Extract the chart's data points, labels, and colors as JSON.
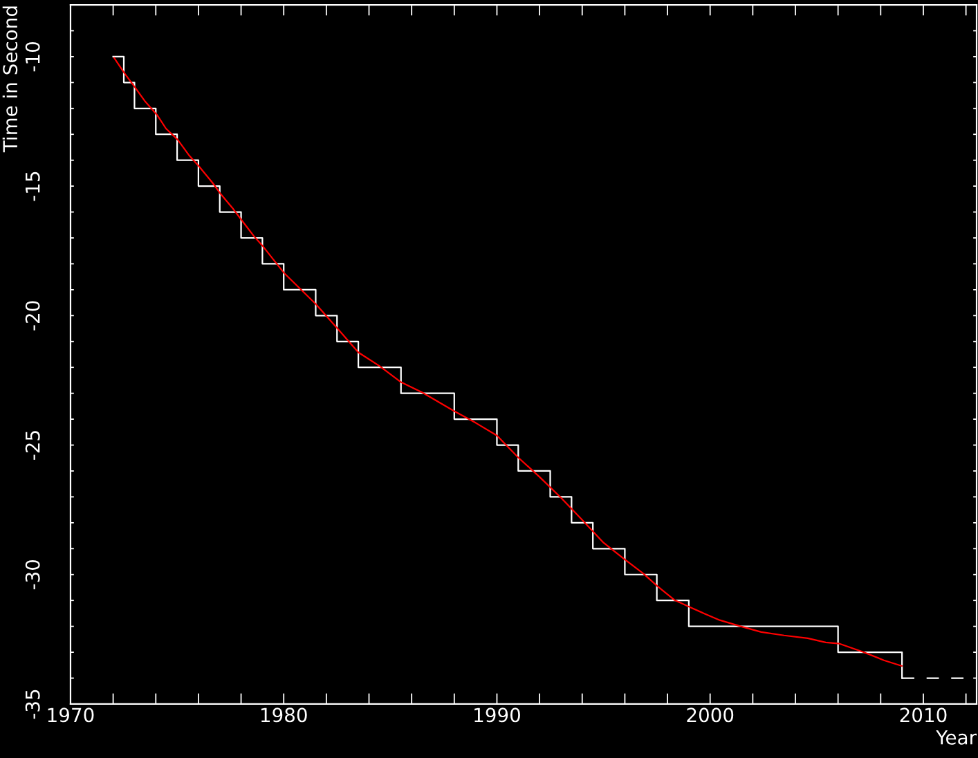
{
  "chart_data": {
    "type": "step",
    "xlabel": "Year",
    "ylabel": "Time in Second",
    "xlim": [
      1970,
      2012.5
    ],
    "ylim": [
      -35,
      -8
    ],
    "xticks": [
      1970,
      {
        "value": 1972,
        "label": null
      },
      {
        "value": 1974,
        "label": null
      },
      {
        "value": 1976,
        "label": null
      },
      {
        "value": 1978,
        "label": null
      },
      1980,
      {
        "value": 1982,
        "label": null
      },
      {
        "value": 1984,
        "label": null
      },
      {
        "value": 1986,
        "label": null
      },
      {
        "value": 1988,
        "label": null
      },
      1990,
      {
        "value": 1992,
        "label": null
      },
      {
        "value": 1994,
        "label": null
      },
      {
        "value": 1996,
        "label": null
      },
      {
        "value": 1998,
        "label": null
      },
      2000,
      {
        "value": 2002,
        "label": null
      },
      {
        "value": 2004,
        "label": null
      },
      {
        "value": 2006,
        "label": null
      },
      {
        "value": 2008,
        "label": null
      },
      2010,
      {
        "value": 2012,
        "label": null
      }
    ],
    "yticks": [
      -35,
      {
        "value": -34,
        "label": null
      },
      {
        "value": -33,
        "label": null
      },
      {
        "value": -32,
        "label": null
      },
      {
        "value": -31,
        "label": null
      },
      -30,
      {
        "value": -29,
        "label": null
      },
      {
        "value": -28,
        "label": null
      },
      {
        "value": -27,
        "label": null
      },
      {
        "value": -26,
        "label": null
      },
      -25,
      {
        "value": -24,
        "label": null
      },
      {
        "value": -23,
        "label": null
      },
      {
        "value": -22,
        "label": null
      },
      {
        "value": -21,
        "label": null
      },
      -20,
      {
        "value": -19,
        "label": null
      },
      {
        "value": -18,
        "label": null
      },
      {
        "value": -17,
        "label": null
      },
      {
        "value": -16,
        "label": null
      },
      -15,
      {
        "value": -14,
        "label": null
      },
      {
        "value": -13,
        "label": null
      },
      {
        "value": -12,
        "label": null
      },
      {
        "value": -11,
        "label": null
      },
      -10,
      {
        "value": -9,
        "label": null
      },
      {
        "value": -8,
        "label": null
      }
    ],
    "grid": false,
    "series": [
      {
        "color": "#ffffff",
        "line_style": "solid",
        "x": [
          1972.0,
          1972.5,
          1973.0,
          1974.0,
          1975.0,
          1976.0,
          1977.0,
          1978.0,
          1979.0,
          1980.0,
          1981.5,
          1982.5,
          1983.5,
          1985.5,
          1988.0,
          1990.0,
          1991.0,
          1992.5,
          1993.5,
          1994.5,
          1996.0,
          1997.5,
          1999.0,
          2006.0,
          2009.0
        ],
        "values": [
          -10,
          -11,
          -12,
          -13,
          -14,
          -15,
          -16,
          -17,
          -18,
          -19,
          -20,
          -21,
          -22,
          -23,
          -24,
          -25,
          -26,
          -27,
          -28,
          -29,
          -30,
          -31,
          -32,
          -33,
          -34
        ]
      },
      {
        "type": "line",
        "color": "#ffffff",
        "line_style": "dashed",
        "x": [
          2009.0,
          2012.0
        ],
        "values": [
          -34,
          -34
        ]
      },
      {
        "type": "line",
        "color": "#ff0000",
        "line_style": "solid",
        "x": [
          1972.05,
          1972.53,
          1973.02,
          1973.51,
          1974.06,
          1974.48,
          1975.03,
          1975.55,
          1976.04,
          1976.66,
          1977.01,
          1977.63,
          1978.05,
          1978.6,
          1979.03,
          1980.0,
          1981.5,
          1982.5,
          1983.5,
          1984.5,
          1985.5,
          1986.5,
          1988.0,
          1989.0,
          1990.0,
          1991.0,
          1992.0,
          1993.0,
          1994.0,
          1995.0,
          1995.91,
          1996.88,
          1997.53,
          1998.34,
          1999.06,
          1999.71,
          2000.45,
          2001.43,
          2002.4,
          2003.47,
          2004.58,
          2005.42,
          2006.07,
          2007.18,
          2008.15,
          2008.99
        ],
        "values": [
          -10.05,
          -10.64,
          -11.18,
          -11.74,
          -12.25,
          -12.78,
          -13.21,
          -13.8,
          -14.25,
          -14.87,
          -15.27,
          -15.88,
          -16.34,
          -16.93,
          -17.33,
          -18.34,
          -19.55,
          -20.48,
          -21.42,
          -21.95,
          -22.57,
          -22.97,
          -23.69,
          -24.14,
          -24.63,
          -25.48,
          -26.23,
          -27.03,
          -27.89,
          -28.77,
          -29.36,
          -29.97,
          -30.45,
          -30.99,
          -31.26,
          -31.5,
          -31.76,
          -32.0,
          -32.22,
          -32.35,
          -32.46,
          -32.62,
          -32.67,
          -32.99,
          -33.31,
          -33.53
        ]
      }
    ]
  }
}
